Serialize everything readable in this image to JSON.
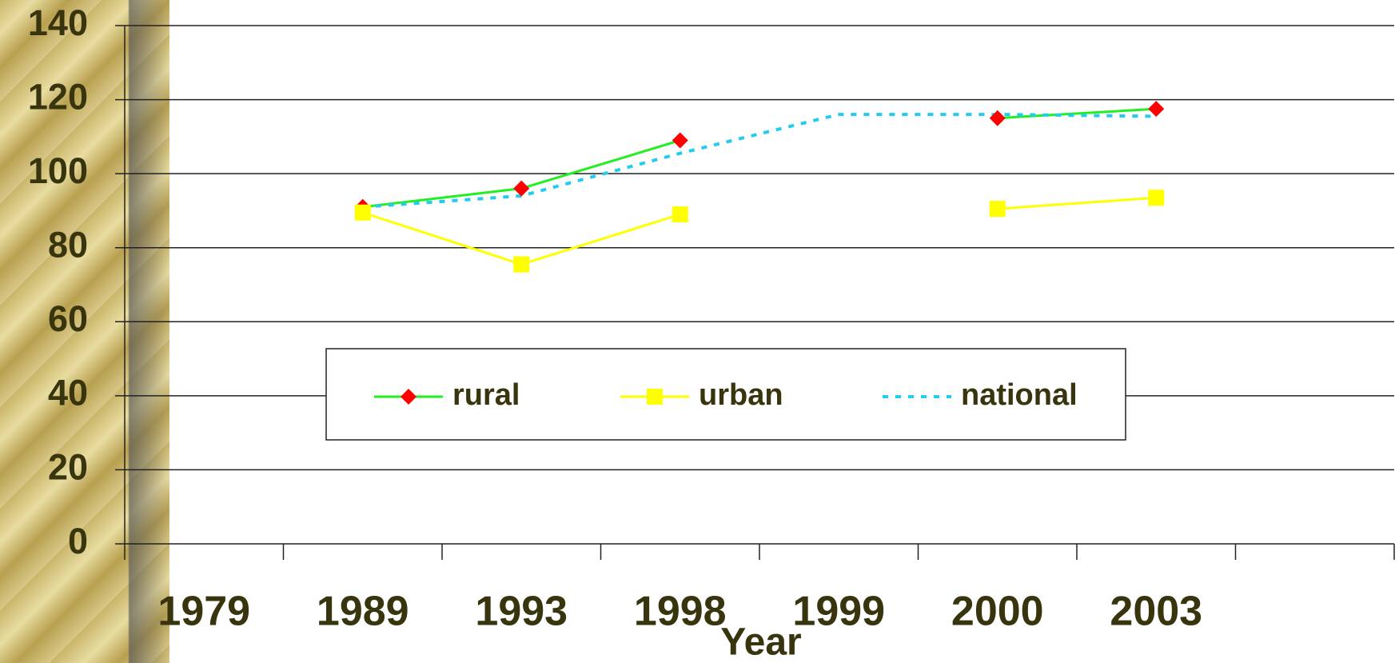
{
  "chart_data": {
    "type": "line",
    "x_label": "Year",
    "categories": [
      "1979",
      "1989",
      "1993",
      "1998",
      "1999",
      "2000",
      "2003",
      null
    ],
    "series": [
      {
        "name": "rural",
        "color": "#22ee22",
        "marker": "diamond",
        "marker_color": "#ff0000",
        "dashed": false,
        "values": [
          null,
          91,
          96,
          109,
          null,
          115,
          117.5,
          null
        ]
      },
      {
        "name": "urban",
        "color": "#ffff00",
        "marker": "square",
        "marker_color": "#ffff00",
        "dashed": false,
        "values": [
          null,
          89.5,
          75.5,
          89,
          null,
          90.5,
          93.5,
          null
        ]
      },
      {
        "name": "national",
        "color": "#22ccee",
        "marker": null,
        "marker_color": null,
        "dashed": true,
        "values": [
          null,
          91,
          94,
          105.5,
          116,
          116,
          115.5,
          null
        ]
      }
    ],
    "ylim": [
      0,
      140
    ],
    "yticks": [
      0,
      20,
      40,
      60,
      80,
      100,
      120,
      140
    ],
    "grid": true
  }
}
